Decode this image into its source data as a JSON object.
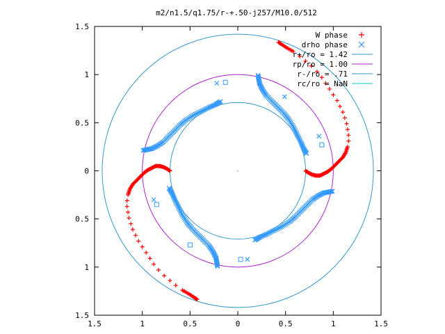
{
  "chart_data": {
    "type": "scatter",
    "title": "m2/n1.5/q1.75/r-+.50-j257/M10.0/512",
    "xlim": [
      -1.5,
      1.5
    ],
    "ylim": [
      -1.5,
      1.5
    ],
    "x_ticks": [
      {
        "value": -1.5,
        "label": "1.5"
      },
      {
        "value": -1,
        "label": "1"
      },
      {
        "value": -0.5,
        "label": "0.5"
      },
      {
        "value": 0,
        "label": "0"
      },
      {
        "value": 0.5,
        "label": "0.5"
      },
      {
        "value": 1,
        "label": "1"
      },
      {
        "value": 1.5,
        "label": "1.5"
      }
    ],
    "y_ticks": [
      {
        "value": 1.5,
        "label": "1.5"
      },
      {
        "value": 1,
        "label": "1"
      },
      {
        "value": 0.5,
        "label": "0.5"
      },
      {
        "value": 0,
        "label": "0"
      },
      {
        "value": -0.5,
        "label": "0.5"
      },
      {
        "value": -1,
        "label": "1"
      },
      {
        "value": -1.5,
        "label": "1.5"
      }
    ],
    "grid": false,
    "legend_position": "top-right",
    "legend": [
      {
        "label": "W phase",
        "marker": "plus",
        "color": "#ff0000"
      },
      {
        "label": "drho phase",
        "marker": "cross",
        "color": "#3399ff"
      },
      {
        "label": "r+/ro = 1.42",
        "marker": "line",
        "color": "#3399cc",
        "radius": 1.42
      },
      {
        "label": "rp/ro = 1.00",
        "marker": "line",
        "color": "#aa22cc",
        "radius": 1.0
      },
      {
        "label": "r-/ro = .71",
        "marker": "line",
        "color": "#3399cc",
        "radius": 0.71
      },
      {
        "label": "rc/ro = NaN",
        "marker": "line",
        "color": "#00cccc"
      }
    ],
    "w_phase_arm_points": [
      [
        0.71,
        0.0
      ],
      [
        0.74,
        -0.02
      ],
      [
        0.78,
        -0.04
      ],
      [
        0.82,
        -0.05
      ],
      [
        0.86,
        -0.05
      ],
      [
        0.9,
        -0.03
      ],
      [
        0.94,
        -0.01
      ],
      [
        0.98,
        0.02
      ],
      [
        1.02,
        0.06
      ],
      [
        1.06,
        0.1
      ],
      [
        1.1,
        0.14
      ],
      [
        1.13,
        0.19
      ],
      [
        1.15,
        0.25
      ],
      [
        1.16,
        0.31
      ],
      [
        1.16,
        0.37
      ],
      [
        1.15,
        0.43
      ],
      [
        1.14,
        0.49
      ],
      [
        1.12,
        0.55
      ],
      [
        1.1,
        0.61
      ],
      [
        1.07,
        0.67
      ],
      [
        1.04,
        0.73
      ],
      [
        1.0,
        0.79
      ],
      [
        0.96,
        0.85
      ],
      [
        0.92,
        0.91
      ],
      [
        0.88,
        0.97
      ],
      [
        0.83,
        1.03
      ],
      [
        0.77,
        1.09
      ],
      [
        0.71,
        1.14
      ],
      [
        0.65,
        1.19
      ],
      [
        0.58,
        1.24
      ],
      [
        0.51,
        1.28
      ],
      [
        0.45,
        1.32
      ],
      [
        0.42,
        1.34
      ]
    ],
    "drho_phase_arm_points": [
      [
        -0.72,
        -0.18
      ],
      [
        -0.69,
        -0.23
      ],
      [
        -0.66,
        -0.3
      ],
      [
        -0.62,
        -0.38
      ],
      [
        -0.58,
        -0.46
      ],
      [
        -0.53,
        -0.54
      ],
      [
        -0.48,
        -0.6
      ],
      [
        -0.42,
        -0.66
      ],
      [
        -0.36,
        -0.72
      ],
      [
        -0.3,
        -0.78
      ],
      [
        -0.26,
        -0.84
      ],
      [
        -0.23,
        -0.9
      ],
      [
        -0.22,
        -0.95
      ],
      [
        -0.21,
        -1.0
      ]
    ],
    "drho_phase_scattered_points": [
      [
        -0.85,
        -0.35
      ],
      [
        -0.88,
        -0.3
      ],
      [
        -0.5,
        -0.77
      ],
      [
        0.85,
        0.36
      ],
      [
        0.88,
        0.27
      ],
      [
        0.49,
        0.77
      ],
      [
        -0.13,
        0.92
      ],
      [
        -0.22,
        0.91
      ],
      [
        0.03,
        -0.92
      ],
      [
        0.1,
        -0.92
      ]
    ],
    "center_dot": [
      0,
      0
    ]
  }
}
